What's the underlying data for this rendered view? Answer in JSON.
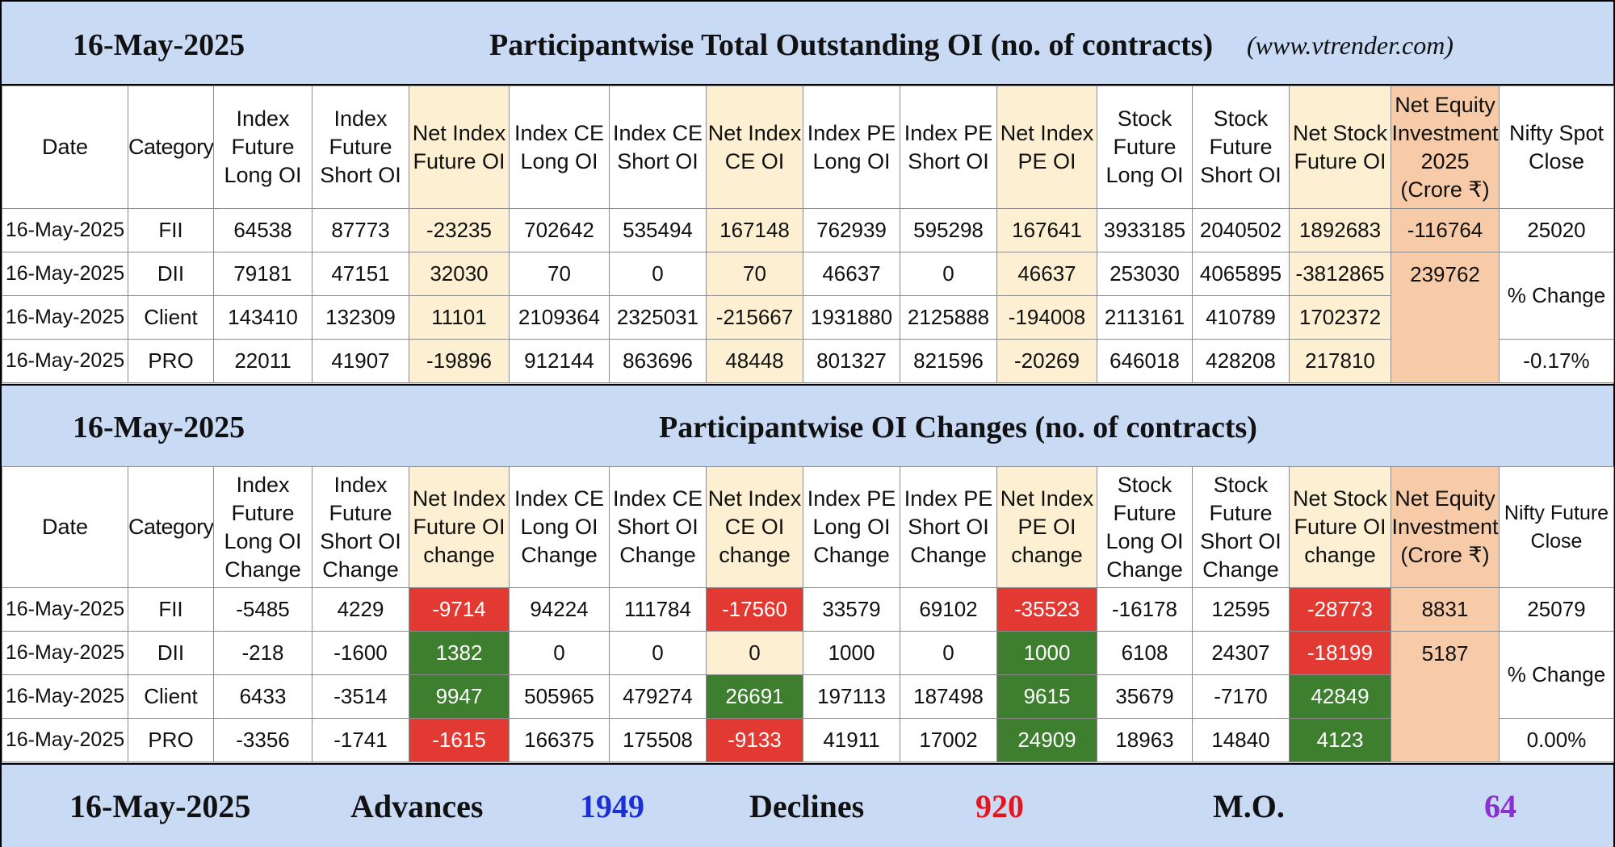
{
  "header1": {
    "date": "16-May-2025",
    "title": "Participantwise Total Outstanding OI (no. of contracts)",
    "site": "(www.vtrender.com)"
  },
  "table1": {
    "headers": [
      "Date",
      "Category",
      "Index Future Long OI",
      "Index Future Short OI",
      "Net Index Future OI",
      "Index CE Long OI",
      "Index CE Short OI",
      "Net Index CE OI",
      "Index PE Long OI",
      "Index PE Short OI",
      "Net Index PE OI",
      "Stock Future Long OI",
      "Stock Future Short OI",
      "Net Stock Future OI",
      "Net Equity Investment 2025 (Crore ₹)",
      "Nifty Spot Close"
    ],
    "rows": [
      {
        "date": "16-May-2025",
        "category": "FII",
        "vals": [
          "64538",
          "87773",
          "-23235",
          "702642",
          "535494",
          "167148",
          "762939",
          "595298",
          "167641",
          "3933185",
          "2040502",
          "1892683"
        ],
        "equity": "-116764"
      },
      {
        "date": "16-May-2025",
        "category": "DII",
        "vals": [
          "79181",
          "47151",
          "32030",
          "70",
          "0",
          "70",
          "46637",
          "0",
          "46637",
          "253030",
          "4065895",
          "-3812865"
        ],
        "equity": "239762"
      },
      {
        "date": "16-May-2025",
        "category": "Client",
        "vals": [
          "143410",
          "132309",
          "11101",
          "2109364",
          "2325031",
          "-215667",
          "1931880",
          "2125888",
          "-194008",
          "2113161",
          "410789",
          "1702372"
        ],
        "equity": ""
      },
      {
        "date": "16-May-2025",
        "category": "PRO",
        "vals": [
          "22011",
          "41907",
          "-19896",
          "912144",
          "863696",
          "48448",
          "801327",
          "821596",
          "-20269",
          "646018",
          "428208",
          "217810"
        ],
        "equity": ""
      }
    ],
    "nifty": {
      "close": "25020",
      "change_label": "% Change",
      "change": "-0.17%"
    }
  },
  "header2": {
    "date": "16-May-2025",
    "title": "Participantwise OI Changes (no. of contracts)"
  },
  "table2": {
    "headers": [
      "Date",
      "Category",
      "Index Future Long OI Change",
      "Index Future Short OI Change",
      "Net Index Future OI change",
      "Index CE Long OI Change",
      "Index CE Short OI Change",
      "Net Index CE OI change",
      "Index PE Long OI Change",
      "Index PE Short OI Change",
      "Net Index PE OI change",
      "Stock Future Long OI Change",
      "Stock Future Short OI Change",
      "Net Stock Future OI change",
      "Net Equity Investment (Crore ₹)",
      "Nifty Future Close"
    ],
    "rows": [
      {
        "date": "16-May-2025",
        "category": "FII",
        "vals": [
          "-5485",
          "4229",
          "-9714",
          "94224",
          "111784",
          "-17560",
          "33579",
          "69102",
          "-35523",
          "-16178",
          "12595",
          "-28773"
        ],
        "equity": "8831"
      },
      {
        "date": "16-May-2025",
        "category": "DII",
        "vals": [
          "-218",
          "-1600",
          "1382",
          "0",
          "0",
          "0",
          "1000",
          "0",
          "1000",
          "6108",
          "24307",
          "-18199"
        ],
        "equity": "5187"
      },
      {
        "date": "16-May-2025",
        "category": "Client",
        "vals": [
          "6433",
          "-3514",
          "9947",
          "505965",
          "479274",
          "26691",
          "197113",
          "187498",
          "9615",
          "35679",
          "-7170",
          "42849"
        ],
        "equity": ""
      },
      {
        "date": "16-May-2025",
        "category": "PRO",
        "vals": [
          "-3356",
          "-1741",
          "-1615",
          "166375",
          "175508",
          "-9133",
          "41911",
          "17002",
          "24909",
          "18963",
          "14840",
          "4123"
        ],
        "equity": ""
      }
    ],
    "nifty": {
      "close": "25079",
      "change_label": "% Change",
      "change": "0.00%"
    }
  },
  "footer": {
    "date": "16-May-2025",
    "advances_label": "Advances",
    "advances": "1949",
    "declines_label": "Declines",
    "declines": "920",
    "mo_label": "M.O.",
    "mo": "64"
  },
  "colors": {
    "background": "#c9daf5",
    "highlight_column": "#fdf0d2",
    "equity_column": "#f8cba8",
    "negative_text": "#e8141b",
    "positive_text": "#1a2fd6",
    "negative_cell": "#e23a32",
    "positive_cell": "#3d7f2e",
    "mo_text": "#8a2fd0"
  }
}
